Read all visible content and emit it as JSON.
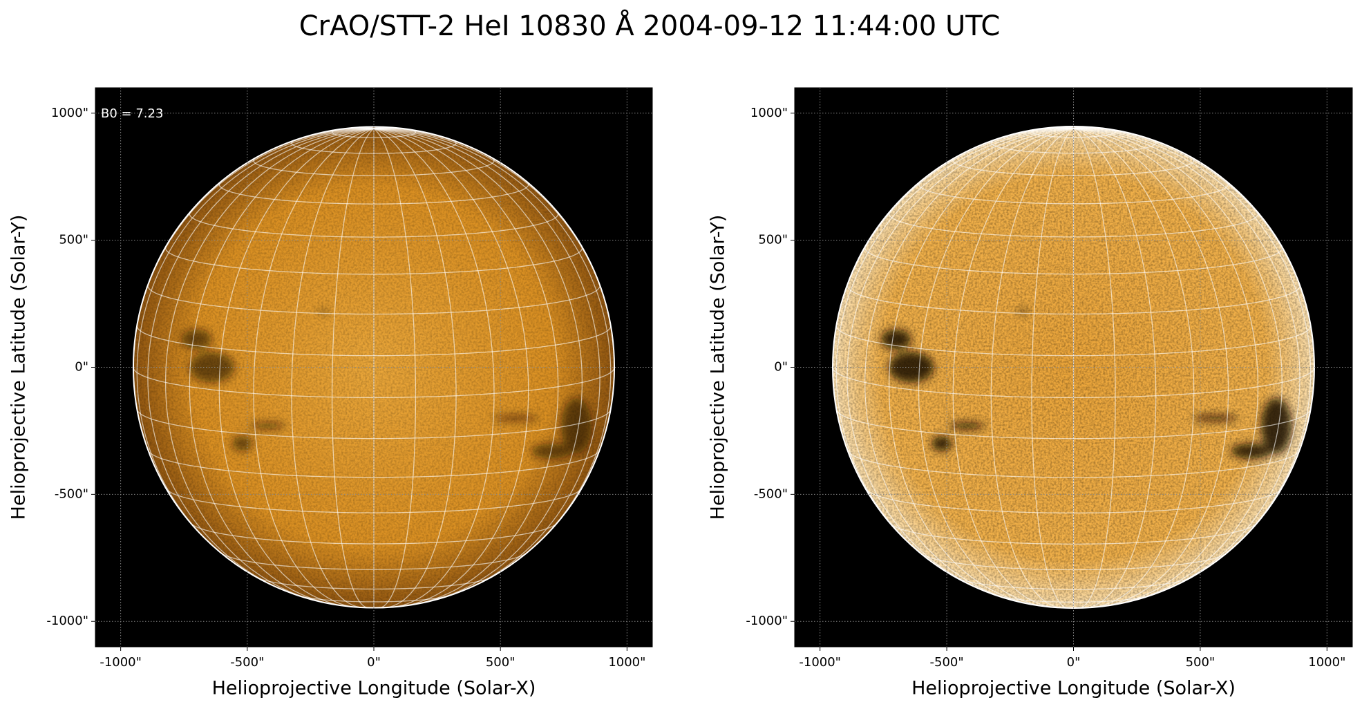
{
  "title": "CrAO/STT-2 HeI 10830 Å 2004-09-12 11:44:00 UTC",
  "chart_data": [
    {
      "type": "image",
      "annotation": "B0 = 7.23",
      "b0": 7.23,
      "xlabel": "Helioprojective Longitude (Solar-X)",
      "ylabel": "Helioprojective Latitude (Solar-Y)",
      "xlim": [
        -1100,
        1100
      ],
      "ylim": [
        -1100,
        1100
      ],
      "xticks": [
        {
          "value": -1000,
          "label": "-1000\""
        },
        {
          "value": -500,
          "label": "-500\""
        },
        {
          "value": 0,
          "label": "0\""
        },
        {
          "value": 500,
          "label": "500\""
        },
        {
          "value": 1000,
          "label": "1000\""
        }
      ],
      "yticks": [
        {
          "value": -1000,
          "label": "-1000\""
        },
        {
          "value": -500,
          "label": "-500\""
        },
        {
          "value": 0,
          "label": "0\""
        },
        {
          "value": 500,
          "label": "500\""
        },
        {
          "value": 1000,
          "label": "1000\""
        }
      ],
      "grid": true
    },
    {
      "type": "image",
      "xlabel": "Helioprojective Longitude (Solar-X)",
      "ylabel": "Helioprojective Latitude (Solar-Y)",
      "xlim": [
        -1100,
        1100
      ],
      "ylim": [
        -1100,
        1100
      ],
      "xticks": [
        {
          "value": -1000,
          "label": "-1000\""
        },
        {
          "value": -500,
          "label": "-500\""
        },
        {
          "value": 0,
          "label": "0\""
        },
        {
          "value": 500,
          "label": "500\""
        },
        {
          "value": 1000,
          "label": "1000\""
        }
      ],
      "yticks": [
        {
          "value": -1000,
          "label": "-1000\""
        },
        {
          "value": -500,
          "label": "-500\""
        },
        {
          "value": 0,
          "label": "0\""
        },
        {
          "value": 500,
          "label": "500\""
        },
        {
          "value": 1000,
          "label": "1000\""
        }
      ],
      "grid": true
    }
  ]
}
